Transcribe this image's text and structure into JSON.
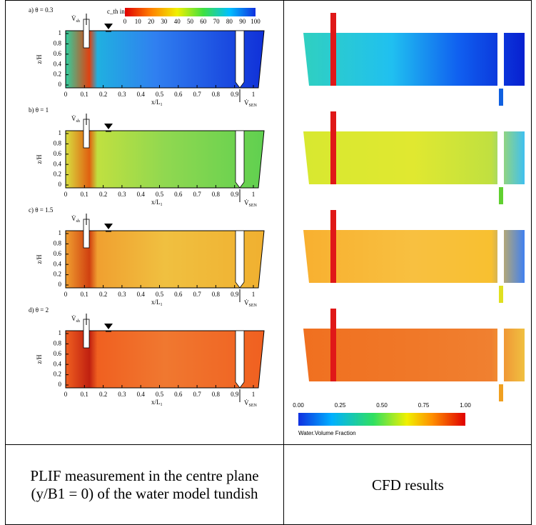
{
  "plif": {
    "panels": [
      "a) θ = 0.3",
      "b) θ = 1",
      "c) θ = 1.5",
      "d) θ = 2"
    ],
    "colorbar_title": "c_th in %",
    "colorbar_ticks": [
      "0",
      "10",
      "20",
      "30",
      "40",
      "50",
      "60",
      "70",
      "80",
      "90",
      "100"
    ],
    "x_ticks": [
      "0",
      "0.1",
      "0.2",
      "0.3",
      "0.4",
      "0.5",
      "0.6",
      "0.7",
      "0.8",
      "0.9",
      "1"
    ],
    "z_ticks": [
      "0",
      "0.2",
      "0.4",
      "0.6",
      "0.8",
      "1"
    ],
    "x_label": "x/L",
    "x_label_sub": "1",
    "z_label": "z/H",
    "inlet": "V̇",
    "inlet_sub": "sh",
    "outlet": "V̇",
    "outlet_sub": "SEN"
  },
  "cfd": {
    "colorbar_ticks": [
      "0.00",
      "0.25",
      "0.50",
      "0.75",
      "1.00"
    ],
    "colorbar_title": "Water.Volume Fraction"
  },
  "captions": {
    "left": "PLIF measurement in the centre plane (y/B1 = 0) of the water model tundish",
    "right": "CFD results"
  }
}
